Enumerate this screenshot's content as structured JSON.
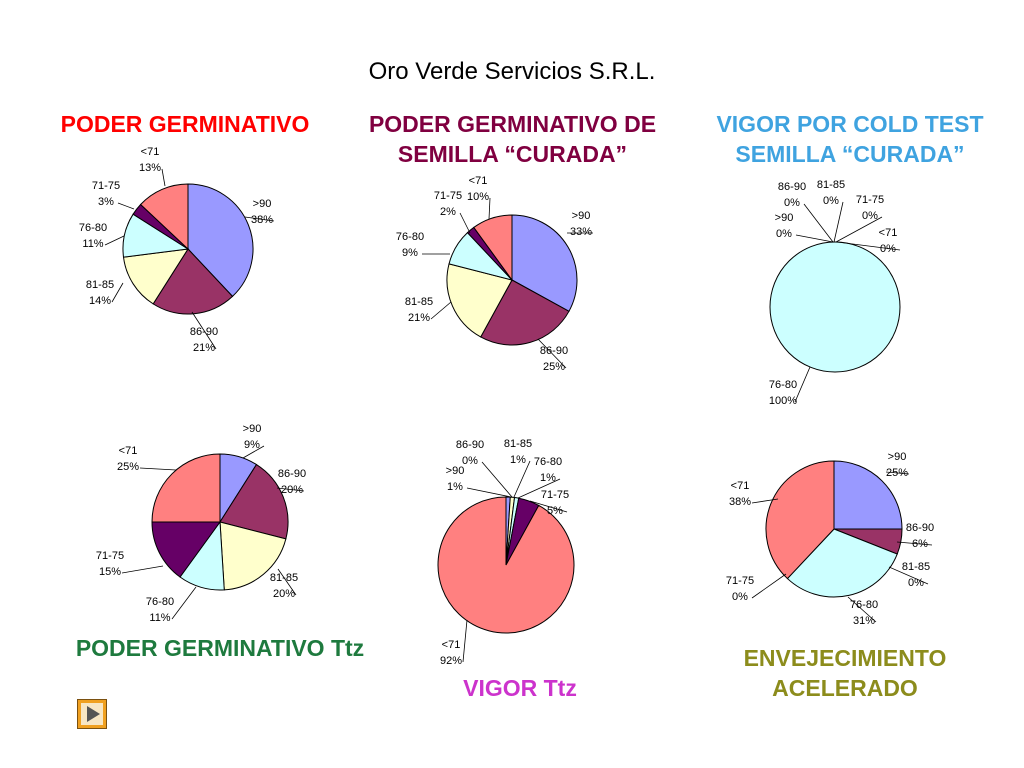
{
  "title": "Oro Verde Servicios S.R.L.",
  "headings": {
    "pg": "PODER GERMINATIVO",
    "pg_curada": "PODER GERMINATIVO DE SEMILLA “CURADA”",
    "vigor_cold": "VIGOR POR COLD TEST SEMILLA “CURADA”",
    "pg_ttz": "PODER GERMINATIVO Ttz",
    "vigor_ttz": "VIGOR Ttz",
    "envejecimiento": "ENVEJECIMIENTO ACELERADO"
  },
  "colors": {
    ">90": "#9999ff",
    "86-90": "#993366",
    "81-85": "#ffffcc",
    "76-80": "#ccffff",
    "71-75": "#660066",
    "<71": "#ff8080"
  },
  "nav": {
    "icon": "play-icon"
  },
  "chart_data": [
    {
      "type": "pie",
      "title": "PODER GERMINATIVO",
      "slices": [
        {
          "label": ">90",
          "value": 38,
          "pct": "38%"
        },
        {
          "label": "86-90",
          "value": 21,
          "pct": "21%"
        },
        {
          "label": "81-85",
          "value": 14,
          "pct": "14%"
        },
        {
          "label": "76-80",
          "value": 11,
          "pct": "11%"
        },
        {
          "label": "71-75",
          "value": 3,
          "pct": "3%"
        },
        {
          "label": "<71",
          "value": 13,
          "pct": "13%"
        }
      ]
    },
    {
      "type": "pie",
      "title": "PODER GERMINATIVO DE SEMILLA “CURADA”",
      "slices": [
        {
          "label": ">90",
          "value": 33,
          "pct": "33%"
        },
        {
          "label": "86-90",
          "value": 25,
          "pct": "25%"
        },
        {
          "label": "81-85",
          "value": 21,
          "pct": "21%"
        },
        {
          "label": "76-80",
          "value": 9,
          "pct": "9%"
        },
        {
          "label": "71-75",
          "value": 2,
          "pct": "2%"
        },
        {
          "label": "<71",
          "value": 10,
          "pct": "10%"
        }
      ]
    },
    {
      "type": "pie",
      "title": "VIGOR POR COLD TEST SEMILLA “CURADA”",
      "slices": [
        {
          "label": ">90",
          "value": 0,
          "pct": "0%"
        },
        {
          "label": "86-90",
          "value": 0,
          "pct": "0%"
        },
        {
          "label": "81-85",
          "value": 0,
          "pct": "0%"
        },
        {
          "label": "76-80",
          "value": 100,
          "pct": "100%"
        },
        {
          "label": "71-75",
          "value": 0,
          "pct": "0%"
        },
        {
          "label": "<71",
          "value": 0,
          "pct": "0%"
        }
      ]
    },
    {
      "type": "pie",
      "title": "PODER GERMINATIVO Ttz",
      "slices": [
        {
          "label": ">90",
          "value": 9,
          "pct": "9%"
        },
        {
          "label": "86-90",
          "value": 20,
          "pct": "20%"
        },
        {
          "label": "81-85",
          "value": 20,
          "pct": "20%"
        },
        {
          "label": "76-80",
          "value": 11,
          "pct": "11%"
        },
        {
          "label": "71-75",
          "value": 15,
          "pct": "15%"
        },
        {
          "label": "<71",
          "value": 25,
          "pct": "25%"
        }
      ]
    },
    {
      "type": "pie",
      "title": "VIGOR Ttz",
      "slices": [
        {
          "label": ">90",
          "value": 1,
          "pct": "1%"
        },
        {
          "label": "86-90",
          "value": 0,
          "pct": "0%"
        },
        {
          "label": "81-85",
          "value": 1,
          "pct": "1%"
        },
        {
          "label": "76-80",
          "value": 1,
          "pct": "1%"
        },
        {
          "label": "71-75",
          "value": 5,
          "pct": "5%"
        },
        {
          "label": "<71",
          "value": 92,
          "pct": "92%"
        }
      ]
    },
    {
      "type": "pie",
      "title": "ENVEJECIMIENTO ACELERADO",
      "slices": [
        {
          "label": ">90",
          "value": 25,
          "pct": "25%"
        },
        {
          "label": "86-90",
          "value": 6,
          "pct": "6%"
        },
        {
          "label": "81-85",
          "value": 0,
          "pct": "0%"
        },
        {
          "label": "76-80",
          "value": 31,
          "pct": "31%"
        },
        {
          "label": "71-75",
          "value": 0,
          "pct": "0%"
        },
        {
          "label": "<71",
          "value": 38,
          "pct": "38%"
        }
      ]
    }
  ]
}
